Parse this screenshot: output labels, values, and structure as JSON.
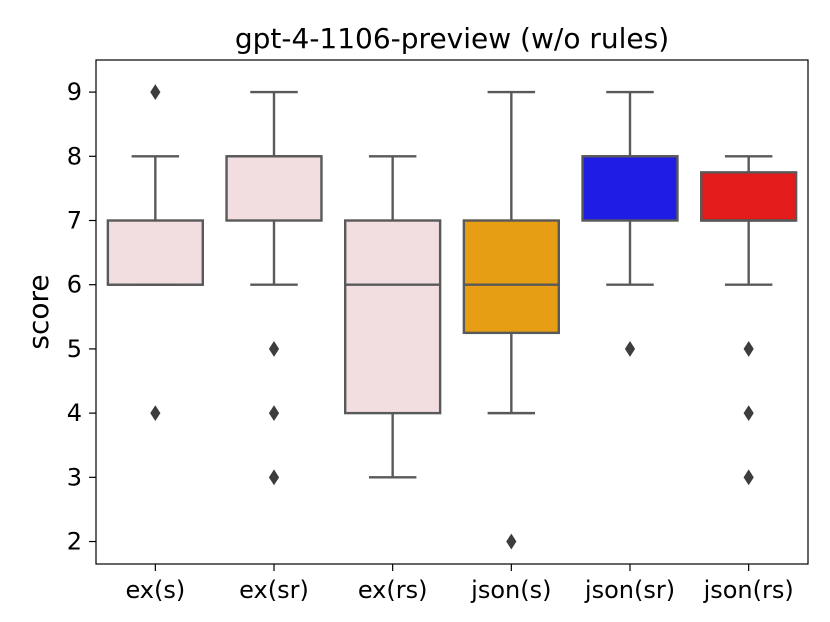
{
  "chart_data": {
    "type": "box",
    "title": "gpt-4-1106-preview (w/o rules)",
    "ylabel": "score",
    "xlabel": "",
    "ylim": [
      1.65,
      9.5
    ],
    "y_ticks": [
      2,
      3,
      4,
      5,
      6,
      7,
      8,
      9
    ],
    "y_tick_labels": [
      "2",
      "3",
      "4",
      "5",
      "6",
      "7",
      "8",
      "9"
    ],
    "grid": false,
    "categories": [
      "ex(s)",
      "ex(sr)",
      "ex(rs)",
      "json(s)",
      "json(sr)",
      "json(rs)"
    ],
    "boxes": [
      {
        "category": "ex(s)",
        "whisker_low": 6,
        "q1": 6,
        "median": 6,
        "q3": 7,
        "whisker_high": 8,
        "outliers": [
          9,
          4
        ],
        "color": "#f2dde1"
      },
      {
        "category": "ex(sr)",
        "whisker_low": 6,
        "q1": 7,
        "median": 8,
        "q3": 8,
        "whisker_high": 9,
        "outliers": [
          5,
          4,
          3
        ],
        "color": "#f2dde1"
      },
      {
        "category": "ex(rs)",
        "whisker_low": 3,
        "q1": 4,
        "median": 6,
        "q3": 7,
        "whisker_high": 8,
        "outliers": [],
        "color": "#f2dde1"
      },
      {
        "category": "json(s)",
        "whisker_low": 4,
        "q1": 5.25,
        "median": 6,
        "q3": 7,
        "whisker_high": 9,
        "outliers": [
          2
        ],
        "color": "#e69f14"
      },
      {
        "category": "json(sr)",
        "whisker_low": 6,
        "q1": 7,
        "median": 8,
        "q3": 8,
        "whisker_high": 9,
        "outliers": [
          5
        ],
        "color": "#1f1ce6"
      },
      {
        "category": "json(rs)",
        "whisker_low": 6,
        "q1": 7,
        "median": 7,
        "q3": 7.75,
        "whisker_high": 8,
        "outliers": [
          5,
          4,
          3
        ],
        "color": "#e41b1b"
      }
    ],
    "line_color": "#595959"
  }
}
